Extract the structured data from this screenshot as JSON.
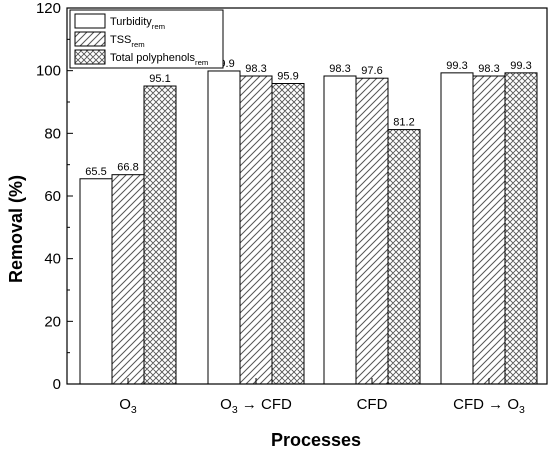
{
  "chart_data": {
    "type": "bar",
    "title": "",
    "xlabel": "Processes",
    "ylabel": "Removal (%)",
    "ylim": [
      0,
      120
    ],
    "yticks": [
      0,
      20,
      40,
      60,
      80,
      100,
      120
    ],
    "grid": false,
    "legend_position": "top-left",
    "categories": [
      {
        "main": "O",
        "sub": "3",
        "tail": ""
      },
      {
        "main": "O",
        "sub": "3",
        "tail": " → CFD"
      },
      {
        "main": "CFD",
        "sub": "",
        "tail": ""
      },
      {
        "main": "CFD → O",
        "sub": "3",
        "tail": ""
      }
    ],
    "series": [
      {
        "name": "Turbidity",
        "name_sub": "rem",
        "pattern": "none",
        "values": [
          65.5,
          99.9,
          98.3,
          99.3
        ],
        "labels": [
          "65.5",
          "99.9",
          "98.3",
          "99.3"
        ]
      },
      {
        "name": "TSS",
        "name_sub": "rem",
        "pattern": "diagonal",
        "values": [
          66.8,
          98.3,
          97.6,
          98.3
        ],
        "labels": [
          "66.8",
          "98.3",
          "97.6",
          "98.3"
        ]
      },
      {
        "name": "Total polyphenols",
        "name_sub": "rem",
        "pattern": "crosshatch",
        "values": [
          95.1,
          95.9,
          81.2,
          99.3
        ],
        "labels": [
          "95.1",
          "95.9",
          "81.2",
          "99.3"
        ]
      }
    ],
    "colors": {
      "bar_fill": "#ffffff",
      "stroke": "#000000",
      "hatch": "#555555"
    }
  }
}
